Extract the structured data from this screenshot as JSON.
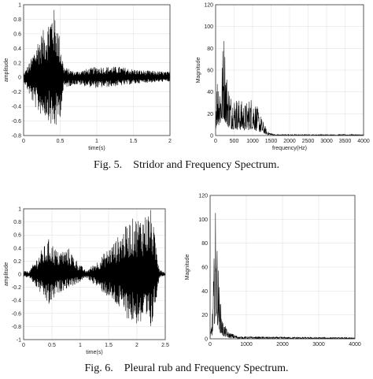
{
  "figures": [
    {
      "caption": "Fig. 5.    Stridor and Frequency Spectrum."
    },
    {
      "caption": "Fig. 6.    Pleural rub and Frequency Spectrum."
    }
  ],
  "chart_data": [
    {
      "type": "line",
      "xlabel": "time(s)",
      "ylabel": "amplitude",
      "xlim": [
        0,
        2
      ],
      "ylim": [
        -0.8,
        1
      ],
      "xticks": [
        "0",
        "0.5",
        "1",
        "1.5",
        "2"
      ],
      "yticks": [
        "-0.8",
        "-0.6",
        "-0.4",
        "-0.2",
        "0",
        "0.2",
        "0.4",
        "0.6",
        "0.8",
        "1"
      ],
      "grid": true,
      "envelope": [
        {
          "x": 0,
          "max": 0.05,
          "min": -0.05
        },
        {
          "x": 0.1,
          "max": 0.25,
          "min": -0.3
        },
        {
          "x": 0.2,
          "max": 0.55,
          "min": -0.5
        },
        {
          "x": 0.3,
          "max": 0.7,
          "min": -0.55
        },
        {
          "x": 0.35,
          "max": 0.85,
          "min": -0.6
        },
        {
          "x": 0.4,
          "max": 1.0,
          "min": -0.75
        },
        {
          "x": 0.45,
          "max": 0.85,
          "min": -0.7
        },
        {
          "x": 0.5,
          "max": 0.5,
          "min": -0.55
        },
        {
          "x": 0.55,
          "max": 0.15,
          "min": -0.15
        },
        {
          "x": 0.7,
          "max": 0.08,
          "min": -0.1
        },
        {
          "x": 1.0,
          "max": 0.15,
          "min": -0.15
        },
        {
          "x": 1.3,
          "max": 0.15,
          "min": -0.12
        },
        {
          "x": 1.6,
          "max": 0.1,
          "min": -0.08
        },
        {
          "x": 1.95,
          "max": 0.08,
          "min": -0.06
        }
      ]
    },
    {
      "type": "line",
      "xlabel": "frequency(Hz)",
      "ylabel": "Magnitude",
      "xlim": [
        0,
        4000
      ],
      "ylim": [
        0,
        120
      ],
      "xticks": [
        "0",
        "500",
        "1000",
        "1500",
        "2000",
        "2500",
        "3000",
        "3500",
        "4000"
      ],
      "yticks": [
        "0",
        "20",
        "40",
        "60",
        "80",
        "100",
        "120"
      ],
      "grid": true,
      "envelope": [
        {
          "x": 0,
          "max": 40
        },
        {
          "x": 60,
          "max": 65
        },
        {
          "x": 150,
          "max": 55
        },
        {
          "x": 220,
          "max": 102
        },
        {
          "x": 300,
          "max": 60
        },
        {
          "x": 400,
          "max": 40
        },
        {
          "x": 600,
          "max": 35
        },
        {
          "x": 800,
          "max": 30
        },
        {
          "x": 1000,
          "max": 38
        },
        {
          "x": 1200,
          "max": 20
        },
        {
          "x": 1400,
          "max": 4
        },
        {
          "x": 1600,
          "max": 1
        },
        {
          "x": 4000,
          "max": 1
        }
      ]
    },
    {
      "type": "line",
      "xlabel": "time(s)",
      "ylabel": "amplitude",
      "xlim": [
        0,
        2.5
      ],
      "ylim": [
        -1,
        1
      ],
      "xticks": [
        "0",
        "0.5",
        "1",
        "1.5",
        "2",
        "2.5"
      ],
      "yticks": [
        "-1",
        "-0.8",
        "-0.6",
        "-0.4",
        "-0.2",
        "0",
        "0.2",
        "0.4",
        "0.6",
        "0.8",
        "1"
      ],
      "grid": true,
      "envelope": [
        {
          "x": 0,
          "max": 0.05,
          "min": -0.05
        },
        {
          "x": 0.1,
          "max": 0.05,
          "min": -0.05
        },
        {
          "x": 0.3,
          "max": 0.35,
          "min": -0.3
        },
        {
          "x": 0.45,
          "max": 0.55,
          "min": -0.5
        },
        {
          "x": 0.6,
          "max": 0.35,
          "min": -0.3
        },
        {
          "x": 0.8,
          "max": 0.4,
          "min": -0.2
        },
        {
          "x": 0.95,
          "max": 0.2,
          "min": -0.15
        },
        {
          "x": 1.1,
          "max": 0.05,
          "min": -0.05
        },
        {
          "x": 1.3,
          "max": 0.2,
          "min": -0.2
        },
        {
          "x": 1.6,
          "max": 0.5,
          "min": -0.45
        },
        {
          "x": 1.9,
          "max": 0.85,
          "min": -0.75
        },
        {
          "x": 2.1,
          "max": 0.9,
          "min": -0.8
        },
        {
          "x": 2.25,
          "max": 1.0,
          "min": -0.9
        },
        {
          "x": 2.4,
          "max": 0.1,
          "min": -0.05
        },
        {
          "x": 2.5,
          "max": 0.02,
          "min": -0.02
        }
      ]
    },
    {
      "type": "line",
      "xlabel": "",
      "ylabel": "Magnitude",
      "xlim": [
        0,
        4000
      ],
      "ylim": [
        0,
        120
      ],
      "xticks": [
        "0",
        "1000",
        "2000",
        "3000",
        "4000"
      ],
      "yticks": [
        "0",
        "20",
        "40",
        "60",
        "80",
        "100",
        "120"
      ],
      "grid": true,
      "envelope": [
        {
          "x": 0,
          "max": 2
        },
        {
          "x": 60,
          "max": 20
        },
        {
          "x": 100,
          "max": 60
        },
        {
          "x": 150,
          "max": 110
        },
        {
          "x": 200,
          "max": 80
        },
        {
          "x": 260,
          "max": 40
        },
        {
          "x": 350,
          "max": 15
        },
        {
          "x": 500,
          "max": 6
        },
        {
          "x": 800,
          "max": 2
        },
        {
          "x": 4000,
          "max": 1
        }
      ]
    }
  ]
}
